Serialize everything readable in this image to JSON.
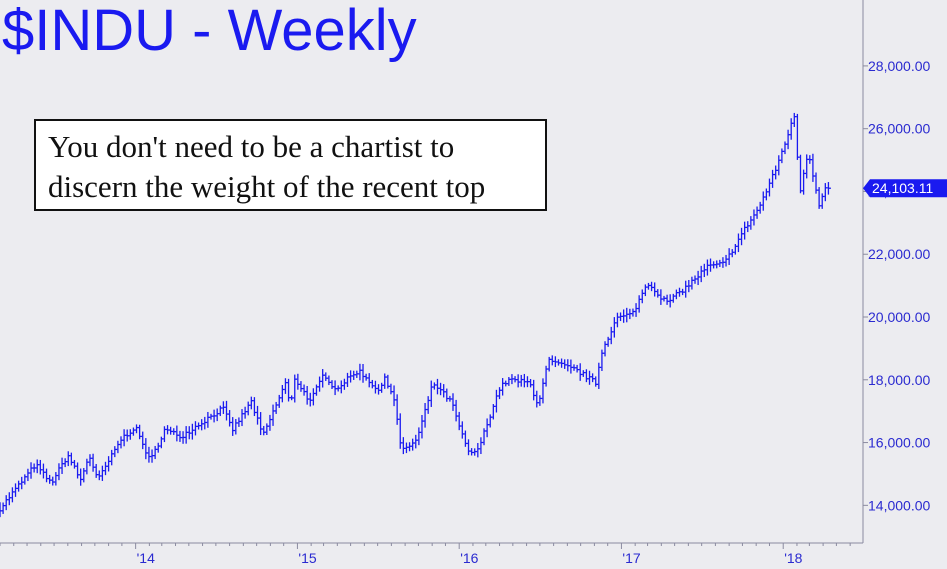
{
  "title": "$INDU - Weekly",
  "annotation": {
    "line1": "You don't need to be a chartist to",
    "line2": "discern the weight of the recent top"
  },
  "colors": {
    "background": "#ececf0",
    "series": "#1a1af0",
    "axis_text": "#2a2ad0",
    "price_tag_bg": "#1a1af0",
    "price_tag_text": "#ffffff"
  },
  "chart_data": {
    "type": "ohlc",
    "title": "$INDU - Weekly",
    "frequency": "weekly",
    "x_axis": {
      "tick_labels": [
        "'14",
        "'15",
        "'16",
        "'17",
        "'18"
      ],
      "tick_dates": [
        "2014-01-01",
        "2015-01-01",
        "2016-01-01",
        "2017-01-01",
        "2018-01-01"
      ],
      "range": [
        "2013-03-01",
        "2018-06-30"
      ]
    },
    "y_axis": {
      "position": "right",
      "tick_labels": [
        "14,000.00",
        "16,000.00",
        "18,000.00",
        "20,000.00",
        "22,000.00",
        "24,000.00",
        "26,000.00",
        "28,000.00"
      ],
      "ticks": [
        14000,
        16000,
        18000,
        20000,
        22000,
        24000,
        26000,
        28000
      ],
      "range": [
        12800,
        30100
      ]
    },
    "last_price": "24,103.11",
    "grid": false,
    "anchors": [
      [
        "2013-03-01",
        13900
      ],
      [
        "2013-05-20",
        15300
      ],
      [
        "2013-06-24",
        14700
      ],
      [
        "2013-08-01",
        15600
      ],
      [
        "2013-08-30",
        14800
      ],
      [
        "2013-09-18",
        15600
      ],
      [
        "2013-10-08",
        14800
      ],
      [
        "2013-11-29",
        16100
      ],
      [
        "2013-12-31",
        16500
      ],
      [
        "2014-02-03",
        15400
      ],
      [
        "2014-03-07",
        16400
      ],
      [
        "2014-04-14",
        16200
      ],
      [
        "2014-07-17",
        17100
      ],
      [
        "2014-08-07",
        16400
      ],
      [
        "2014-09-19",
        17300
      ],
      [
        "2014-10-15",
        16200
      ],
      [
        "2014-12-05",
        17900
      ],
      [
        "2014-12-16",
        17100
      ],
      [
        "2014-12-26",
        18050
      ],
      [
        "2015-01-30",
        17300
      ],
      [
        "2015-03-02",
        18200
      ],
      [
        "2015-03-27",
        17700
      ],
      [
        "2015-05-19",
        18300
      ],
      [
        "2015-07-07",
        17600
      ],
      [
        "2015-07-17",
        18100
      ],
      [
        "2015-08-07",
        17400
      ],
      [
        "2015-08-24",
        15700
      ],
      [
        "2015-09-28",
        16100
      ],
      [
        "2015-11-03",
        17900
      ],
      [
        "2015-12-14",
        17300
      ],
      [
        "2016-01-20",
        15700
      ],
      [
        "2016-02-11",
        15700
      ],
      [
        "2016-03-31",
        17700
      ],
      [
        "2016-04-20",
        18000
      ],
      [
        "2016-06-08",
        17900
      ],
      [
        "2016-06-27",
        17200
      ],
      [
        "2016-07-20",
        18600
      ],
      [
        "2016-09-22",
        18300
      ],
      [
        "2016-11-04",
        17900
      ],
      [
        "2016-11-18",
        18900
      ],
      [
        "2016-12-20",
        19950
      ],
      [
        "2017-01-26",
        20100
      ],
      [
        "2017-03-01",
        21100
      ],
      [
        "2017-04-13",
        20450
      ],
      [
        "2017-05-31",
        21000
      ],
      [
        "2017-07-14",
        21600
      ],
      [
        "2017-08-21",
        21700
      ],
      [
        "2017-10-06",
        22800
      ],
      [
        "2017-11-08",
        23500
      ],
      [
        "2017-12-15",
        24700
      ],
      [
        "2018-01-26",
        26400
      ],
      [
        "2018-02-08",
        24000
      ],
      [
        "2018-02-26",
        25300
      ],
      [
        "2018-03-23",
        23600
      ],
      [
        "2018-04-06",
        24100
      ]
    ],
    "final_bar": {
      "date": "2018-04-13",
      "high": 24300,
      "low": 23900,
      "close": 24103.11
    }
  }
}
